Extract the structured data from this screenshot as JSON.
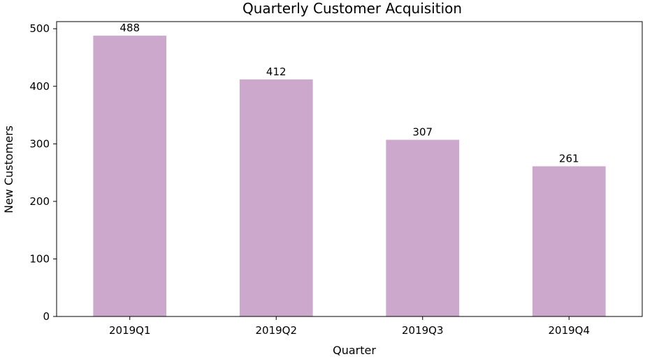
{
  "chart_data": {
    "type": "bar",
    "title": "Quarterly Customer Acquisition",
    "xlabel": "Quarter",
    "ylabel": "New Customers",
    "categories": [
      "2019Q1",
      "2019Q2",
      "2019Q3",
      "2019Q4"
    ],
    "values": [
      488,
      412,
      307,
      261
    ],
    "ylim": [
      0,
      512.4
    ],
    "yticks": [
      0,
      100,
      200,
      300,
      400,
      500
    ],
    "bar_color": "#cca8cc",
    "grid": false,
    "legend": "none"
  }
}
